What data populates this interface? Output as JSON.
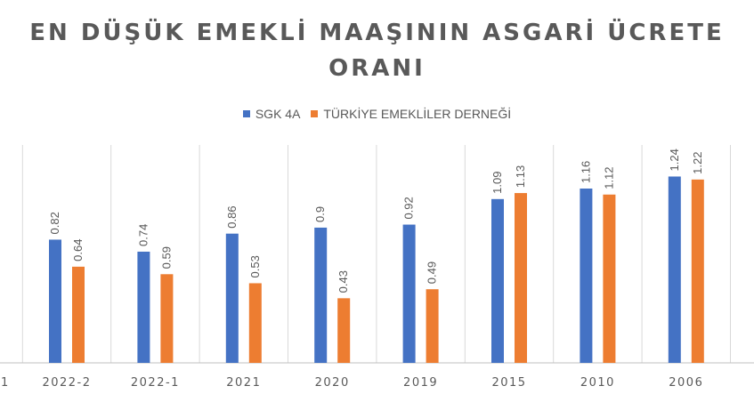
{
  "chart_data": {
    "type": "bar",
    "title_lines": [
      "EN DÜŞÜK EMEKLİ MAAŞININ ASGARİ ÜCRETE",
      "ORANI"
    ],
    "xlabel": "",
    "ylabel": "",
    "categories": [
      "2022-2",
      "2022-1",
      "2021",
      "2020",
      "2019",
      "2015",
      "2010",
      "2006"
    ],
    "left_cut_tick": "1",
    "series": [
      {
        "name": "SGK 4A",
        "color": "#4472C4",
        "values": [
          0.82,
          0.74,
          0.86,
          0.9,
          0.92,
          1.09,
          1.16,
          1.24
        ]
      },
      {
        "name": "TÜRKİYE EMEKLİLER DERNEĞİ",
        "color": "#ED7D31",
        "values": [
          0.64,
          0.59,
          0.53,
          0.43,
          0.49,
          1.13,
          1.12,
          1.22
        ]
      }
    ],
    "ylim": [
      0,
      1.45
    ],
    "grid": "vertical",
    "legend_position": "top",
    "data_labels": "rotated-vertical"
  }
}
